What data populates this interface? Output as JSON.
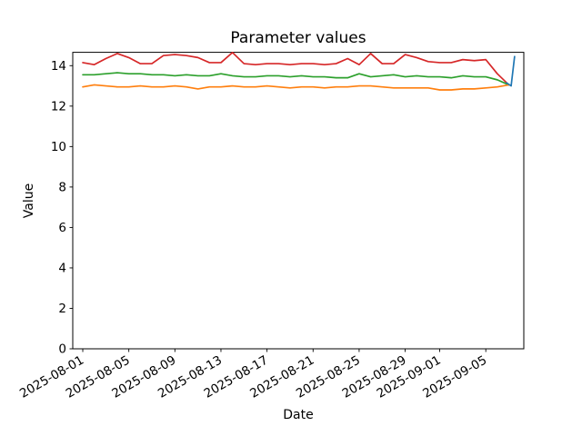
{
  "figure": {
    "background": "#ffffff",
    "spine_color": "#000000"
  },
  "chart_data": {
    "type": "line",
    "title": "Parameter values",
    "xlabel": "Date",
    "ylabel": "Value",
    "grid": false,
    "legend": "none",
    "x_unit": "days since 2025-08-01",
    "xlim_days": [
      -0.87,
      38.3
    ],
    "ylim": [
      0,
      14.66
    ],
    "yticks": [
      0,
      2,
      4,
      6,
      8,
      10,
      12,
      14
    ],
    "xticks": [
      {
        "day": 0,
        "label": "2025-08-01"
      },
      {
        "day": 4,
        "label": "2025-08-05"
      },
      {
        "day": 8,
        "label": "2025-08-09"
      },
      {
        "day": 12,
        "label": "2025-08-13"
      },
      {
        "day": 16,
        "label": "2025-08-17"
      },
      {
        "day": 20,
        "label": "2025-08-21"
      },
      {
        "day": 24,
        "label": "2025-08-25"
      },
      {
        "day": 28,
        "label": "2025-08-29"
      },
      {
        "day": 31,
        "label": "2025-09-01"
      },
      {
        "day": 35,
        "label": "2025-09-05"
      }
    ],
    "series": [
      {
        "name": "series-red",
        "color": "#d62728",
        "x_days": [
          0,
          1,
          2,
          3,
          4,
          5,
          6,
          7,
          8,
          9,
          10,
          11,
          12,
          13,
          14,
          15,
          16,
          17,
          18,
          19,
          20,
          21,
          22,
          23,
          24,
          25,
          26,
          27,
          28,
          29,
          30,
          31,
          32,
          33,
          34,
          35,
          36,
          37
        ],
        "values": [
          14.15,
          14.05,
          14.35,
          14.6,
          14.4,
          14.1,
          14.1,
          14.5,
          14.55,
          14.5,
          14.4,
          14.15,
          14.15,
          14.65,
          14.1,
          14.05,
          14.1,
          14.1,
          14.05,
          14.1,
          14.1,
          14.05,
          14.1,
          14.35,
          14.05,
          14.6,
          14.1,
          14.1,
          14.55,
          14.4,
          14.2,
          14.15,
          14.15,
          14.3,
          14.25,
          14.3,
          13.6,
          13.05
        ]
      },
      {
        "name": "series-green",
        "color": "#2ca02c",
        "x_days": [
          0,
          1,
          2,
          3,
          4,
          5,
          6,
          7,
          8,
          9,
          10,
          11,
          12,
          13,
          14,
          15,
          16,
          17,
          18,
          19,
          20,
          21,
          22,
          23,
          24,
          25,
          26,
          27,
          28,
          29,
          30,
          31,
          32,
          33,
          34,
          35,
          36,
          37
        ],
        "values": [
          13.55,
          13.55,
          13.6,
          13.65,
          13.6,
          13.6,
          13.55,
          13.55,
          13.5,
          13.55,
          13.5,
          13.5,
          13.6,
          13.5,
          13.45,
          13.45,
          13.5,
          13.5,
          13.45,
          13.5,
          13.45,
          13.45,
          13.4,
          13.4,
          13.6,
          13.45,
          13.5,
          13.55,
          13.45,
          13.5,
          13.45,
          13.45,
          13.4,
          13.5,
          13.45,
          13.45,
          13.3,
          13.05
        ]
      },
      {
        "name": "series-orange",
        "color": "#ff7f0e",
        "x_days": [
          0,
          1,
          2,
          3,
          4,
          5,
          6,
          7,
          8,
          9,
          10,
          11,
          12,
          13,
          14,
          15,
          16,
          17,
          18,
          19,
          20,
          21,
          22,
          23,
          24,
          25,
          26,
          27,
          28,
          29,
          30,
          31,
          32,
          33,
          34,
          35,
          36,
          37
        ],
        "values": [
          12.95,
          13.05,
          13.0,
          12.95,
          12.95,
          13.0,
          12.95,
          12.95,
          13.0,
          12.95,
          12.85,
          12.95,
          12.95,
          13.0,
          12.95,
          12.95,
          13.0,
          12.95,
          12.9,
          12.95,
          12.95,
          12.9,
          12.95,
          12.95,
          13.0,
          13.0,
          12.95,
          12.9,
          12.9,
          12.9,
          12.9,
          12.8,
          12.8,
          12.85,
          12.85,
          12.9,
          12.95,
          13.05
        ]
      },
      {
        "name": "series-blue",
        "color": "#1f77b4",
        "x_days": [
          36.8,
          37.2,
          37.5
        ],
        "values": [
          13.15,
          13.0,
          14.45
        ]
      }
    ]
  }
}
